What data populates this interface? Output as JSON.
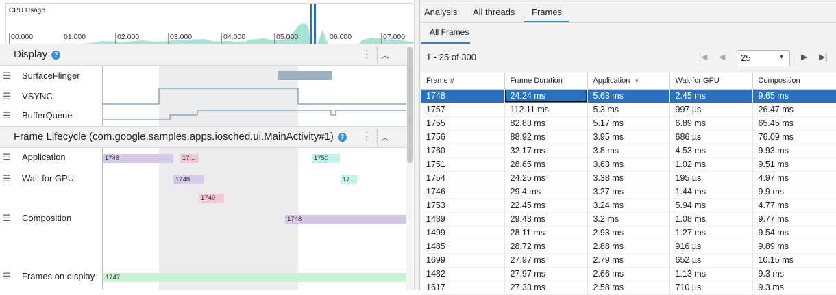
{
  "cpu": {
    "label": "CPU Usage",
    "ticks": [
      "00.000",
      "01.000",
      "02.000",
      "03.000",
      "04.000",
      "05.000",
      "06.000",
      "07.000"
    ],
    "fill_color": "#a7e3d5",
    "marker_color": "#2872c0"
  },
  "display": {
    "title": "Display",
    "help": "?",
    "tracks": [
      "SurfaceFlinger",
      "VSYNC",
      "BufferQueue"
    ]
  },
  "lifecycle": {
    "title": "Frame Lifecycle (com.google.samples.apps.iosched.ui.MainActivity#1)",
    "help": "?",
    "tracks": [
      "Application",
      "Wait for GPU",
      "Composition",
      "Frames on display"
    ],
    "bars": {
      "app1": "1748",
      "app2": "17...",
      "app3": "1750",
      "gpu1": "1748",
      "gpu2": "17...",
      "gpu3": "1749",
      "comp1": "1748",
      "disp1": "1747"
    }
  },
  "tabs": [
    "Analysis",
    "All threads",
    "Frames"
  ],
  "active_tab": "Frames",
  "subtab": "All Frames",
  "pager": {
    "range": "1 - 25 of 300",
    "page_size": "25"
  },
  "table": {
    "columns": [
      "Frame #",
      "Frame Duration",
      "Application",
      "Wait for GPU",
      "Composition"
    ],
    "sort_column": "Application",
    "rows": [
      [
        "1748",
        "24.24 ms",
        "5.63 ms",
        "2.45 ms",
        "9.65 ms"
      ],
      [
        "1757",
        "112.11 ms",
        "5.3 ms",
        "997 µs",
        "26.47 ms"
      ],
      [
        "1755",
        "82.83 ms",
        "5.17 ms",
        "6.89 ms",
        "65.45 ms"
      ],
      [
        "1756",
        "88.92 ms",
        "3.95 ms",
        "686 µs",
        "76.09 ms"
      ],
      [
        "1760",
        "32.17 ms",
        "3.8 ms",
        "4.53 ms",
        "9.93 ms"
      ],
      [
        "1751",
        "28.65 ms",
        "3.63 ms",
        "1.02 ms",
        "9.51 ms"
      ],
      [
        "1754",
        "24.25 ms",
        "3.38 ms",
        "195 µs",
        "4.97 ms"
      ],
      [
        "1746",
        "29.4 ms",
        "3.27 ms",
        "1.44 ms",
        "9.9 ms"
      ],
      [
        "1753",
        "22.45 ms",
        "3.24 ms",
        "5.94 ms",
        "4.77 ms"
      ],
      [
        "1489",
        "29.43 ms",
        "3.2 ms",
        "1.08 ms",
        "9.77 ms"
      ],
      [
        "1499",
        "28.11 ms",
        "2.93 ms",
        "1.27 ms",
        "9.54 ms"
      ],
      [
        "1485",
        "28.72 ms",
        "2.88 ms",
        "916 µs",
        "9.89 ms"
      ],
      [
        "1699",
        "27.97 ms",
        "2.79 ms",
        "652 µs",
        "10.15 ms"
      ],
      [
        "1482",
        "27.97 ms",
        "2.66 ms",
        "1.13 ms",
        "9.3 ms"
      ],
      [
        "1617",
        "27.33 ms",
        "2.58 ms",
        "710 µs",
        "9.3 ms"
      ]
    ]
  }
}
